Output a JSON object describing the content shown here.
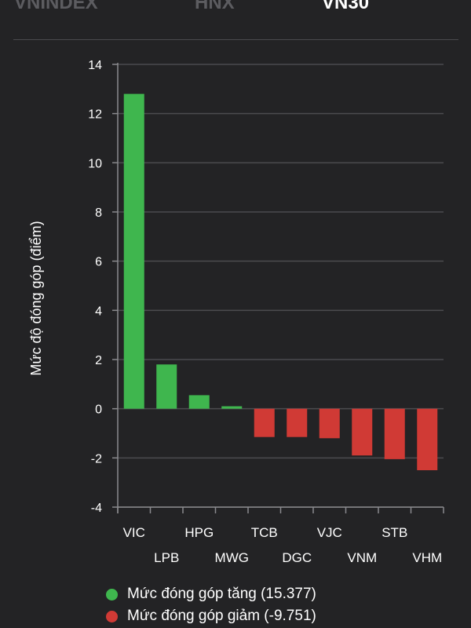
{
  "tabs": [
    {
      "label": "VNINDEX",
      "active": false
    },
    {
      "label": "HNX",
      "active": false
    },
    {
      "label": "VN30",
      "active": true
    }
  ],
  "colors": {
    "positive": "#3fb64e",
    "negative": "#d03a35",
    "grid": "#4b4b4f",
    "axis": "#8a8a8e",
    "text": "#ffffff"
  },
  "chart_data": {
    "type": "bar",
    "title": "",
    "xlabel": "",
    "ylabel": "Mức độ đóng góp (điểm)",
    "ylim": [
      -4,
      14
    ],
    "yticks": [
      -4,
      -2,
      0,
      2,
      4,
      6,
      8,
      10,
      12,
      14
    ],
    "grid": true,
    "categories": [
      "VIC",
      "LPB",
      "HPG",
      "MWG",
      "TCB",
      "DGC",
      "VJC",
      "VNM",
      "STB",
      "VHM"
    ],
    "values": [
      12.8,
      1.8,
      0.55,
      0.1,
      -1.15,
      -1.15,
      -1.2,
      -1.9,
      -2.05,
      -2.5
    ],
    "legend": {
      "position": "bottom-left",
      "entries": [
        {
          "label": "Mức đóng góp tăng (15.377)",
          "color": "#3fb64e"
        },
        {
          "label": "Mức đóng góp giảm (-9.751)",
          "color": "#d03a35"
        }
      ]
    }
  }
}
